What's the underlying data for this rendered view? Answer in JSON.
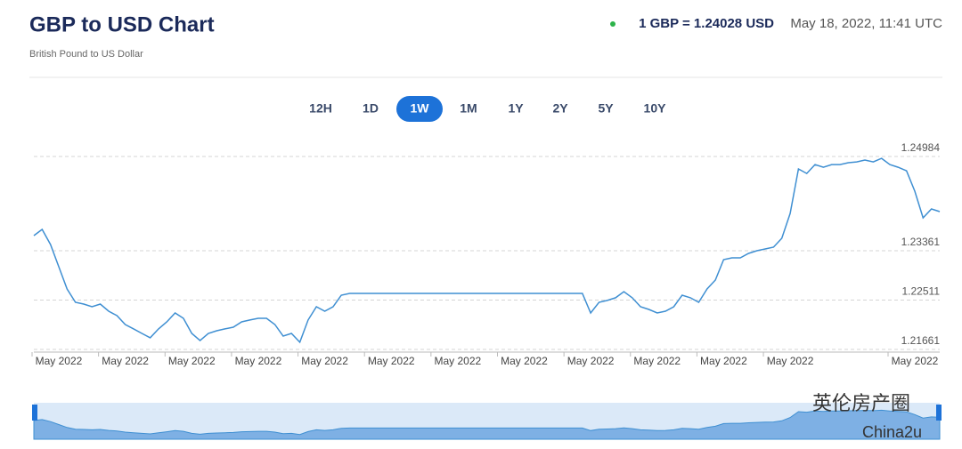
{
  "chart_data": {
    "type": "line",
    "title": "GBP to USD Chart",
    "subtitle": "British Pound to US Dollar",
    "rate": "1 GBP = 1.24028 USD",
    "timestamp": "May 18, 2022, 11:41 UTC",
    "range_buttons": [
      "12H",
      "1D",
      "1W",
      "1M",
      "1Y",
      "2Y",
      "5Y",
      "10Y"
    ],
    "active_range": 2,
    "color": "#3f8fd2",
    "grid": true,
    "ylim": [
      1.2163,
      1.2523
    ],
    "yticks": [
      1.21661,
      1.22511,
      1.23361,
      1.24984
    ],
    "categories": [
      null,
      null,
      null,
      "May 2022",
      null,
      null,
      null,
      null,
      null,
      null,
      null,
      "May 2022",
      null,
      null,
      null,
      null,
      null,
      null,
      null,
      "May 2022",
      null,
      null,
      null,
      null,
      null,
      null,
      null,
      "May 2022",
      null,
      null,
      null,
      null,
      null,
      null,
      null,
      "May 2022",
      null,
      null,
      null,
      null,
      null,
      null,
      null,
      "May 2022",
      null,
      null,
      null,
      null,
      null,
      null,
      null,
      "May 2022",
      null,
      null,
      null,
      null,
      null,
      null,
      null,
      "May 2022",
      null,
      null,
      null,
      null,
      null,
      null,
      null,
      "May 2022",
      null,
      null,
      null,
      null,
      null,
      null,
      null,
      "May 2022",
      null,
      null,
      null,
      null,
      null,
      null,
      null,
      "May 2022",
      null,
      null,
      null,
      null,
      null,
      null,
      null,
      "May 2022",
      null,
      null,
      null,
      null,
      null,
      null,
      null,
      null,
      null,
      null,
      null,
      null,
      null,
      null,
      "May 2022",
      null,
      null,
      null
    ],
    "values": [
      1.23621,
      1.23728,
      1.23468,
      1.23085,
      1.22703,
      1.22473,
      1.22442,
      1.22396,
      1.22442,
      1.2232,
      1.22243,
      1.2209,
      1.22014,
      1.21937,
      1.21861,
      1.22014,
      1.22136,
      1.22289,
      1.22197,
      1.21937,
      1.21814,
      1.21937,
      1.21983,
      1.22014,
      1.22044,
      1.22136,
      1.22167,
      1.22197,
      1.22197,
      1.2209,
      1.21891,
      1.21937,
      1.21784,
      1.22167,
      1.22396,
      1.2232,
      1.22396,
      1.22595,
      1.22626,
      1.22626,
      1.22626,
      1.22626,
      1.22626,
      1.22626,
      1.22626,
      1.22626,
      1.22626,
      1.22626,
      1.22626,
      1.22626,
      1.22626,
      1.22626,
      1.22626,
      1.22626,
      1.22626,
      1.22626,
      1.22626,
      1.22626,
      1.22626,
      1.22626,
      1.22626,
      1.22626,
      1.22626,
      1.22626,
      1.22626,
      1.22626,
      1.22626,
      1.22289,
      1.22473,
      1.22504,
      1.2255,
      1.22657,
      1.2255,
      1.22396,
      1.2235,
      1.22289,
      1.2232,
      1.22396,
      1.22595,
      1.2255,
      1.22473,
      1.22703,
      1.22856,
      1.23208,
      1.23239,
      1.23239,
      1.23315,
      1.23361,
      1.23392,
      1.23422,
      1.23575,
      1.24004,
      1.2477,
      1.24693,
      1.24846,
      1.248,
      1.24846,
      1.24846,
      1.24877,
      1.24892,
      1.24923,
      1.24892,
      1.24953,
      1.24846,
      1.248,
      1.24739,
      1.24387,
      1.23928,
      1.24081,
      1.24035
    ]
  },
  "watermark": {
    "primary": "英伦房产圈",
    "secondary": "China2u"
  }
}
